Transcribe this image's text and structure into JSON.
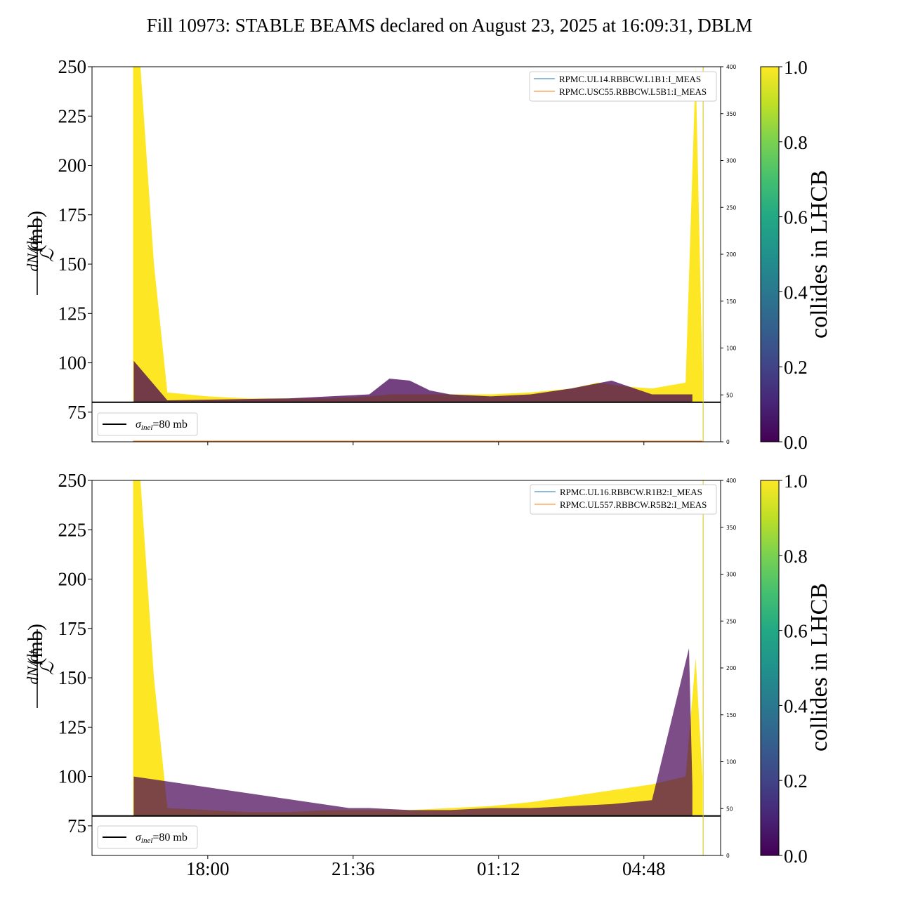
{
  "title": "Fill 10973: STABLE BEAMS declared on August 23, 2025 at 16:09:31, DBLM",
  "colorbar": {
    "label": "collides in LHCB",
    "ticks": [
      "0.0",
      "0.2",
      "0.4",
      "0.6",
      "0.8",
      "1.0"
    ],
    "colormap": [
      "#440154",
      "#482475",
      "#414487",
      "#355f8d",
      "#2a788e",
      "#21918c",
      "#22a884",
      "#44bf70",
      "#7ad151",
      "#bddf26",
      "#fde725"
    ]
  },
  "colors": {
    "yellow": "#fde725",
    "purple": "#440154",
    "series_blue": "#1f77b4",
    "series_orange": "#ff7f0e",
    "ref_line": "#000000"
  },
  "ylabel_num": "dN/dt",
  "ylabel_den": "ℒ",
  "ylabel_unit": "(mb)",
  "reference_label_sym": "σ",
  "reference_label_sub": "inel",
  "reference_label_val": "=80 mb",
  "chart_data": [
    {
      "type": "area",
      "panel": "top",
      "x_ticks": [
        "18:00",
        "21:36",
        "01:12",
        "04:48"
      ],
      "y_ticks": [
        75,
        100,
        125,
        150,
        175,
        200,
        225,
        250
      ],
      "ylim": [
        60,
        250
      ],
      "right_y_ticks": [
        0,
        50,
        100,
        150,
        200,
        250,
        300,
        350,
        400
      ],
      "right_ylim": [
        0,
        400
      ],
      "reference_line": 80,
      "legend": [
        "RPMC.UL14.RBBCW.L1B1:I_MEAS",
        "RPMC.USC55.RBBCW.L5B1:I_MEAS"
      ],
      "envelope_time": [
        "16:09",
        "16:20",
        "16:40",
        "17:00",
        "18:00",
        "19:00",
        "20:00",
        "21:00",
        "22:00",
        "22:30",
        "23:00",
        "00:00",
        "01:00",
        "02:00",
        "03:00",
        "03:40",
        "04:20",
        "05:00",
        "05:50",
        "06:05",
        "06:15"
      ],
      "envelope_max": [
        250,
        250,
        150,
        85,
        83,
        82,
        82,
        82,
        83,
        84,
        84,
        84,
        84,
        85,
        87,
        90,
        88,
        87,
        90,
        250,
        95
      ],
      "purple_time": [
        "16:10",
        "16:30",
        "17:00",
        "20:00",
        "22:00",
        "22:30",
        "23:00",
        "23:30",
        "00:00",
        "01:00",
        "02:00",
        "03:00",
        "04:00",
        "05:00",
        "06:00"
      ],
      "purple_max": [
        101,
        93,
        81,
        82,
        84,
        92,
        91,
        86,
        84,
        83,
        84,
        87,
        91,
        84,
        84
      ]
    },
    {
      "type": "area",
      "panel": "bottom",
      "x_ticks": [
        "18:00",
        "21:36",
        "01:12",
        "04:48"
      ],
      "y_ticks": [
        75,
        100,
        125,
        150,
        175,
        200,
        225,
        250
      ],
      "ylim": [
        60,
        250
      ],
      "right_y_ticks": [
        0,
        50,
        100,
        150,
        200,
        250,
        300,
        350,
        400
      ],
      "right_ylim": [
        0,
        400
      ],
      "reference_line": 80,
      "legend": [
        "RPMC.UL16.RBBCW.R1B2:I_MEAS",
        "RPMC.UL557.RBBCW.R5B2:I_MEAS"
      ],
      "envelope_time": [
        "16:09",
        "16:20",
        "16:40",
        "17:00",
        "18:00",
        "19:00",
        "20:00",
        "21:00",
        "22:00",
        "23:00",
        "00:00",
        "01:00",
        "02:00",
        "03:00",
        "04:00",
        "05:00",
        "05:50",
        "06:05",
        "06:15"
      ],
      "envelope_max": [
        250,
        250,
        150,
        84,
        83,
        82,
        82,
        83,
        83,
        83,
        84,
        85,
        87,
        90,
        93,
        96,
        100,
        160,
        100
      ],
      "purple_time": [
        "16:10",
        "21:30",
        "22:00",
        "23:00",
        "00:00",
        "01:00",
        "02:00",
        "03:00",
        "04:00",
        "05:00",
        "05:55",
        "06:00"
      ],
      "purple_max": [
        100,
        84,
        84,
        83,
        83,
        84,
        84,
        85,
        86,
        88,
        165,
        95
      ]
    }
  ]
}
